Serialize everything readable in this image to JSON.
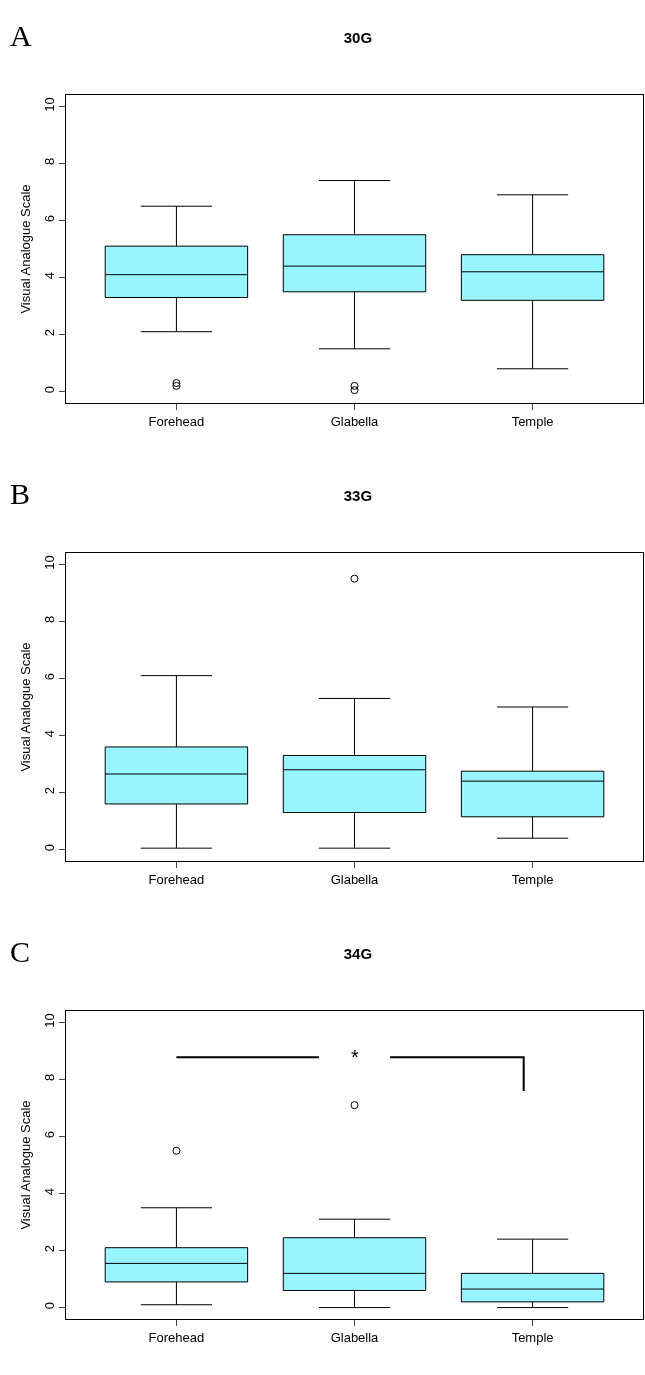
{
  "chart_data": [
    {
      "type": "box",
      "title": "30G",
      "ylabel": "Visual Analogue Scale",
      "annotations": [
        "A"
      ],
      "categories": [
        "Forehead",
        "Glabella",
        "Temple"
      ],
      "ylim": [
        -0.4,
        10.4
      ],
      "yticks": [
        0,
        2,
        4,
        6,
        8,
        10
      ],
      "series": [
        {
          "color": "#98f5ff",
          "boxes": [
            {
              "low": 2.1,
              "q1": 3.3,
              "median": 4.1,
              "q3": 5.1,
              "high": 6.5,
              "outliers": [
                0.2,
                0.3
              ]
            },
            {
              "low": 1.5,
              "q1": 3.5,
              "median": 4.4,
              "q3": 5.5,
              "high": 7.4,
              "outliers": [
                0.05,
                0.2
              ]
            },
            {
              "low": 0.8,
              "q1": 3.2,
              "median": 4.2,
              "q3": 4.8,
              "high": 6.9
            }
          ]
        }
      ]
    },
    {
      "type": "box",
      "title": "33G",
      "ylabel": "Visual Analogue Scale",
      "annotations": [
        "B"
      ],
      "categories": [
        "Forehead",
        "Glabella",
        "Temple"
      ],
      "ylim": [
        -0.4,
        10.4
      ],
      "yticks": [
        0,
        2,
        4,
        6,
        8,
        10
      ],
      "series": [
        {
          "color": "#98f5ff",
          "boxes": [
            {
              "low": 0.05,
              "q1": 1.6,
              "median": 2.65,
              "q3": 3.6,
              "high": 6.1
            },
            {
              "low": 0.05,
              "q1": 1.3,
              "median": 2.8,
              "q3": 3.3,
              "high": 5.3,
              "outliers": [
                9.5
              ]
            },
            {
              "low": 0.4,
              "q1": 1.15,
              "median": 2.4,
              "q3": 2.75,
              "high": 5.0
            }
          ]
        }
      ]
    },
    {
      "type": "box",
      "title": "34G",
      "ylabel": "Visual Analogue Scale",
      "annotations": [
        "C",
        "*"
      ],
      "categories": [
        "Forehead",
        "Glabella",
        "Temple"
      ],
      "ylim": [
        -0.4,
        10.4
      ],
      "yticks": [
        0,
        2,
        4,
        6,
        8,
        10
      ],
      "series": [
        {
          "color": "#98f5ff",
          "boxes": [
            {
              "low": 0.1,
              "q1": 0.9,
              "median": 1.55,
              "q3": 2.1,
              "high": 3.5,
              "outliers": [
                5.5
              ]
            },
            {
              "low": 0.0,
              "q1": 0.6,
              "median": 1.2,
              "q3": 2.45,
              "high": 3.1,
              "outliers": [
                7.1
              ]
            },
            {
              "low": 0.0,
              "q1": 0.2,
              "median": 0.65,
              "q3": 1.2,
              "high": 2.4
            }
          ]
        }
      ]
    }
  ]
}
